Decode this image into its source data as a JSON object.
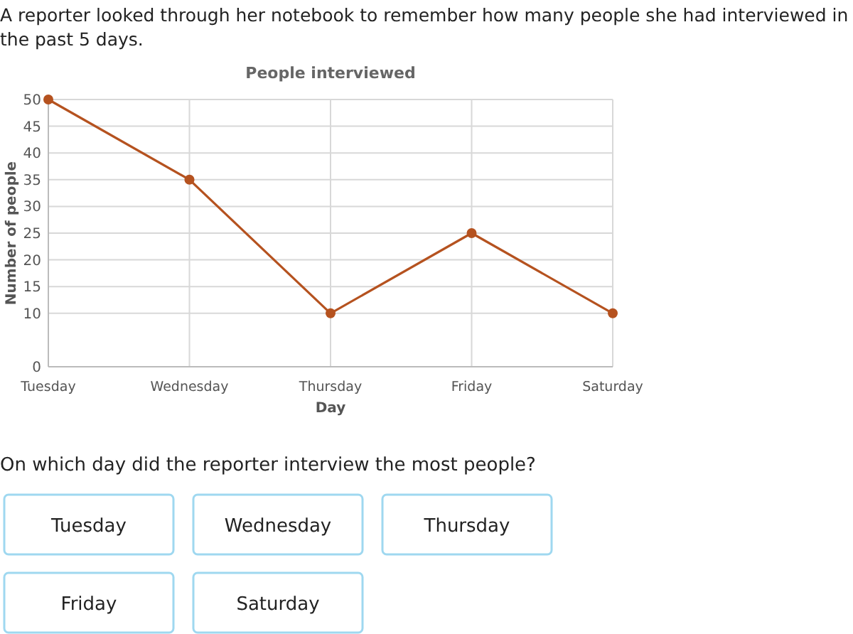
{
  "chart_data": {
    "type": "line",
    "title": "People interviewed",
    "xlabel": "Day",
    "ylabel": "Number of people",
    "categories": [
      "Tuesday",
      "Wednesday",
      "Thursday",
      "Friday",
      "Saturday"
    ],
    "series": [
      {
        "color": "#b5521f",
        "values": [
          50,
          35,
          10,
          25,
          10
        ]
      }
    ],
    "ylim": [
      0,
      50
    ],
    "yticks": [
      0,
      10,
      15,
      20,
      25,
      30,
      35,
      40,
      45,
      50
    ],
    "grid": true,
    "marker": "circle",
    "line_style": "solid",
    "annotations": [
      "A reporter looked through her notebook to remember how many people she had interviewed in the past 5 days.",
      "On which day did the reporter interview the most people?",
      "Tuesday",
      "Wednesday",
      "Thursday",
      "Friday",
      "Saturday"
    ]
  }
}
